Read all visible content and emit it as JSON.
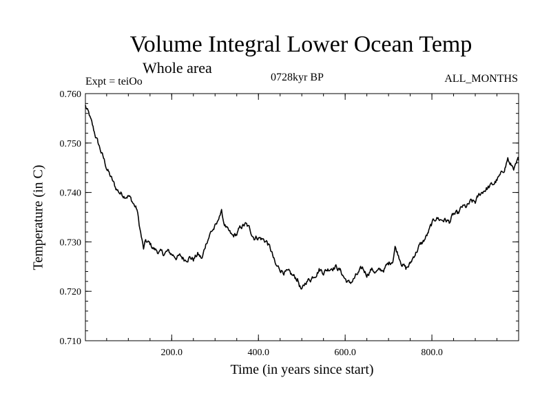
{
  "chart_data": {
    "type": "line",
    "title": "Volume Integral Lower Ocean Temp",
    "subtitle": "Whole area",
    "experiment": "Expt = teiOo",
    "period": "0728kyr BP",
    "months": "ALL_MONTHS",
    "xlabel": "Time (in years since start)",
    "ylabel": "Temperature (in C)",
    "xlim": [
      1,
      1000
    ],
    "ylim": [
      0.71,
      0.76
    ],
    "xticks": [
      200,
      400,
      600,
      800
    ],
    "xtick_labels": [
      "200.0",
      "400.0",
      "600.0",
      "800.0"
    ],
    "yticks": [
      0.71,
      0.72,
      0.73,
      0.74,
      0.75,
      0.76
    ],
    "ytick_labels": [
      "0.710",
      "0.720",
      "0.730",
      "0.740",
      "0.750",
      "0.760"
    ],
    "grid": false,
    "line_color": "#000000",
    "series": [
      {
        "name": "Volume Integral Lower Ocean Temp",
        "x": [
          1,
          10,
          20,
          30,
          40,
          50,
          60,
          70,
          80,
          90,
          100,
          110,
          120,
          125,
          130,
          135,
          140,
          150,
          160,
          170,
          180,
          190,
          200,
          210,
          220,
          230,
          240,
          250,
          260,
          270,
          280,
          290,
          300,
          305,
          310,
          315,
          320,
          330,
          340,
          350,
          360,
          370,
          380,
          390,
          400,
          410,
          420,
          430,
          440,
          450,
          460,
          470,
          480,
          490,
          500,
          510,
          520,
          530,
          540,
          550,
          560,
          570,
          580,
          590,
          600,
          610,
          620,
          630,
          640,
          650,
          660,
          670,
          680,
          690,
          700,
          710,
          715,
          720,
          730,
          740,
          750,
          760,
          770,
          780,
          790,
          800,
          810,
          820,
          830,
          840,
          850,
          860,
          870,
          880,
          890,
          900,
          910,
          920,
          930,
          940,
          950,
          960,
          970,
          975,
          980,
          990,
          1000
        ],
        "values": [
          0.7575,
          0.7555,
          0.7525,
          0.75,
          0.7475,
          0.745,
          0.743,
          0.741,
          0.74,
          0.7395,
          0.7395,
          0.738,
          0.7365,
          0.7335,
          0.731,
          0.7285,
          0.73,
          0.7295,
          0.7285,
          0.728,
          0.7275,
          0.728,
          0.7275,
          0.727,
          0.727,
          0.7265,
          0.727,
          0.7265,
          0.7275,
          0.7265,
          0.73,
          0.732,
          0.733,
          0.7335,
          0.7355,
          0.736,
          0.734,
          0.732,
          0.731,
          0.7315,
          0.733,
          0.7335,
          0.7325,
          0.731,
          0.731,
          0.7305,
          0.73,
          0.728,
          0.725,
          0.7245,
          0.724,
          0.7235,
          0.723,
          0.7225,
          0.72,
          0.722,
          0.7225,
          0.7235,
          0.7245,
          0.724,
          0.7245,
          0.725,
          0.725,
          0.724,
          0.7225,
          0.7215,
          0.7225,
          0.7235,
          0.7245,
          0.7235,
          0.7245,
          0.724,
          0.724,
          0.7245,
          0.7255,
          0.7265,
          0.729,
          0.728,
          0.726,
          0.7245,
          0.7255,
          0.7275,
          0.729,
          0.73,
          0.7315,
          0.7335,
          0.735,
          0.7345,
          0.7345,
          0.734,
          0.7355,
          0.7355,
          0.737,
          0.737,
          0.738,
          0.738,
          0.7395,
          0.7405,
          0.741,
          0.7415,
          0.7425,
          0.7435,
          0.7455,
          0.747,
          0.7455,
          0.745,
          0.7465
        ]
      }
    ]
  }
}
